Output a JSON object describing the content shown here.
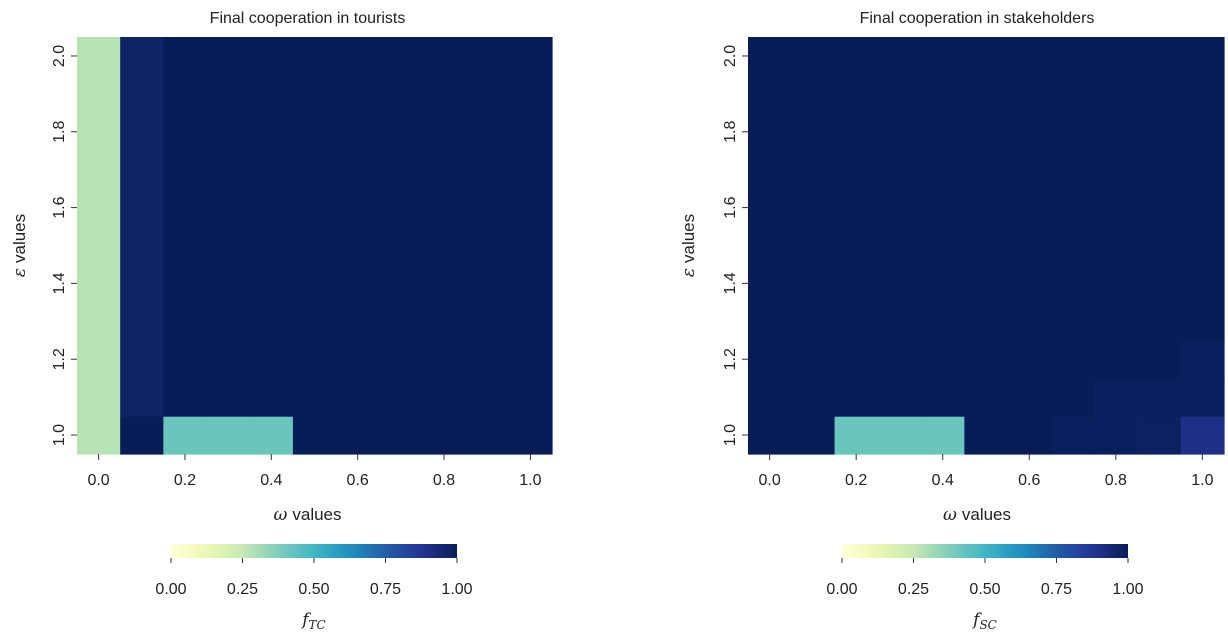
{
  "chart_data": [
    {
      "type": "heatmap",
      "title": "Final cooperation in tourists",
      "xlabel_symbol": "ω",
      "xlabel_text": "values",
      "ylabel_symbol": "ε",
      "ylabel_text": "values",
      "x": [
        0.0,
        0.1,
        0.2,
        0.3,
        0.4,
        0.5,
        0.6,
        0.7,
        0.8,
        0.9,
        1.0
      ],
      "y": [
        1.0,
        1.1,
        1.2,
        1.3,
        1.4,
        1.5,
        1.6,
        1.7,
        1.8,
        1.9,
        2.0
      ],
      "xlim": [
        -0.05,
        1.05
      ],
      "ylim": [
        0.95,
        2.05
      ],
      "x_ticks": [
        "0.0",
        "0.2",
        "0.4",
        "0.6",
        "0.8",
        "1.0"
      ],
      "y_ticks": [
        "1.0",
        "1.2",
        "1.4",
        "1.6",
        "1.8",
        "2.0"
      ],
      "values": [
        [
          0.28,
          1.0,
          0.42,
          0.42,
          0.42,
          1.0,
          1.0,
          1.0,
          1.0,
          1.0,
          1.0
        ],
        [
          0.28,
          0.97,
          1.0,
          1.0,
          1.0,
          1.0,
          1.0,
          1.0,
          1.0,
          1.0,
          1.0
        ],
        [
          0.28,
          0.97,
          1.0,
          1.0,
          1.0,
          1.0,
          1.0,
          1.0,
          1.0,
          1.0,
          1.0
        ],
        [
          0.28,
          0.97,
          1.0,
          1.0,
          1.0,
          1.0,
          1.0,
          1.0,
          1.0,
          1.0,
          1.0
        ],
        [
          0.28,
          0.97,
          1.0,
          1.0,
          1.0,
          1.0,
          1.0,
          1.0,
          1.0,
          1.0,
          1.0
        ],
        [
          0.28,
          0.97,
          1.0,
          1.0,
          1.0,
          1.0,
          1.0,
          1.0,
          1.0,
          1.0,
          1.0
        ],
        [
          0.28,
          0.97,
          1.0,
          1.0,
          1.0,
          1.0,
          1.0,
          1.0,
          1.0,
          1.0,
          1.0
        ],
        [
          0.28,
          0.97,
          1.0,
          1.0,
          1.0,
          1.0,
          1.0,
          1.0,
          1.0,
          1.0,
          1.0
        ],
        [
          0.28,
          0.97,
          1.0,
          1.0,
          1.0,
          1.0,
          1.0,
          1.0,
          1.0,
          1.0,
          1.0
        ],
        [
          0.28,
          0.97,
          1.0,
          1.0,
          1.0,
          1.0,
          1.0,
          1.0,
          1.0,
          1.0,
          1.0
        ],
        [
          0.28,
          0.97,
          1.0,
          1.0,
          1.0,
          1.0,
          1.0,
          1.0,
          1.0,
          1.0,
          1.0
        ]
      ],
      "colorbar": {
        "label_main": "f",
        "label_sub": "TC",
        "range": [
          0.0,
          1.0
        ],
        "ticks": [
          "0.00",
          "0.25",
          "0.50",
          "0.75",
          "1.00"
        ]
      }
    },
    {
      "type": "heatmap",
      "title": "Final cooperation in stakeholders",
      "xlabel_symbol": "ω",
      "xlabel_text": "values",
      "ylabel_symbol": "ε",
      "ylabel_text": "values",
      "x": [
        0.0,
        0.1,
        0.2,
        0.3,
        0.4,
        0.5,
        0.6,
        0.7,
        0.8,
        0.9,
        1.0
      ],
      "y": [
        1.0,
        1.1,
        1.2,
        1.3,
        1.4,
        1.5,
        1.6,
        1.7,
        1.8,
        1.9,
        2.0
      ],
      "xlim": [
        -0.05,
        1.05
      ],
      "ylim": [
        0.95,
        2.05
      ],
      "x_ticks": [
        "0.0",
        "0.2",
        "0.4",
        "0.6",
        "0.8",
        "1.0"
      ],
      "y_ticks": [
        "1.0",
        "1.2",
        "1.4",
        "1.6",
        "1.8",
        "2.0"
      ],
      "values": [
        [
          1.0,
          1.0,
          0.42,
          0.42,
          0.42,
          1.0,
          1.0,
          0.99,
          0.99,
          0.98,
          0.9
        ],
        [
          1.0,
          1.0,
          1.0,
          1.0,
          1.0,
          1.0,
          1.0,
          1.0,
          0.99,
          0.99,
          0.99
        ],
        [
          1.0,
          1.0,
          1.0,
          1.0,
          1.0,
          1.0,
          1.0,
          1.0,
          1.0,
          1.0,
          0.99
        ],
        [
          1.0,
          1.0,
          1.0,
          1.0,
          1.0,
          1.0,
          1.0,
          1.0,
          1.0,
          1.0,
          1.0
        ],
        [
          1.0,
          1.0,
          1.0,
          1.0,
          1.0,
          1.0,
          1.0,
          1.0,
          1.0,
          1.0,
          1.0
        ],
        [
          1.0,
          1.0,
          1.0,
          1.0,
          1.0,
          1.0,
          1.0,
          1.0,
          1.0,
          1.0,
          1.0
        ],
        [
          1.0,
          1.0,
          1.0,
          1.0,
          1.0,
          1.0,
          1.0,
          1.0,
          1.0,
          1.0,
          1.0
        ],
        [
          1.0,
          1.0,
          1.0,
          1.0,
          1.0,
          1.0,
          1.0,
          1.0,
          1.0,
          1.0,
          1.0
        ],
        [
          1.0,
          1.0,
          1.0,
          1.0,
          1.0,
          1.0,
          1.0,
          1.0,
          1.0,
          1.0,
          1.0
        ],
        [
          1.0,
          1.0,
          1.0,
          1.0,
          1.0,
          1.0,
          1.0,
          1.0,
          1.0,
          1.0,
          1.0
        ],
        [
          1.0,
          1.0,
          1.0,
          1.0,
          1.0,
          1.0,
          1.0,
          1.0,
          1.0,
          1.0,
          1.0
        ]
      ],
      "colorbar": {
        "label_main": "f",
        "label_sub": "SC",
        "range": [
          0.0,
          1.0
        ],
        "ticks": [
          "0.00",
          "0.25",
          "0.50",
          "0.75",
          "1.00"
        ]
      }
    }
  ],
  "colormap": [
    "#ffffd9",
    "#edf8b1",
    "#c7e9b4",
    "#7fcdbb",
    "#41b6c4",
    "#1d91c0",
    "#225ea8",
    "#253494",
    "#081d58"
  ]
}
